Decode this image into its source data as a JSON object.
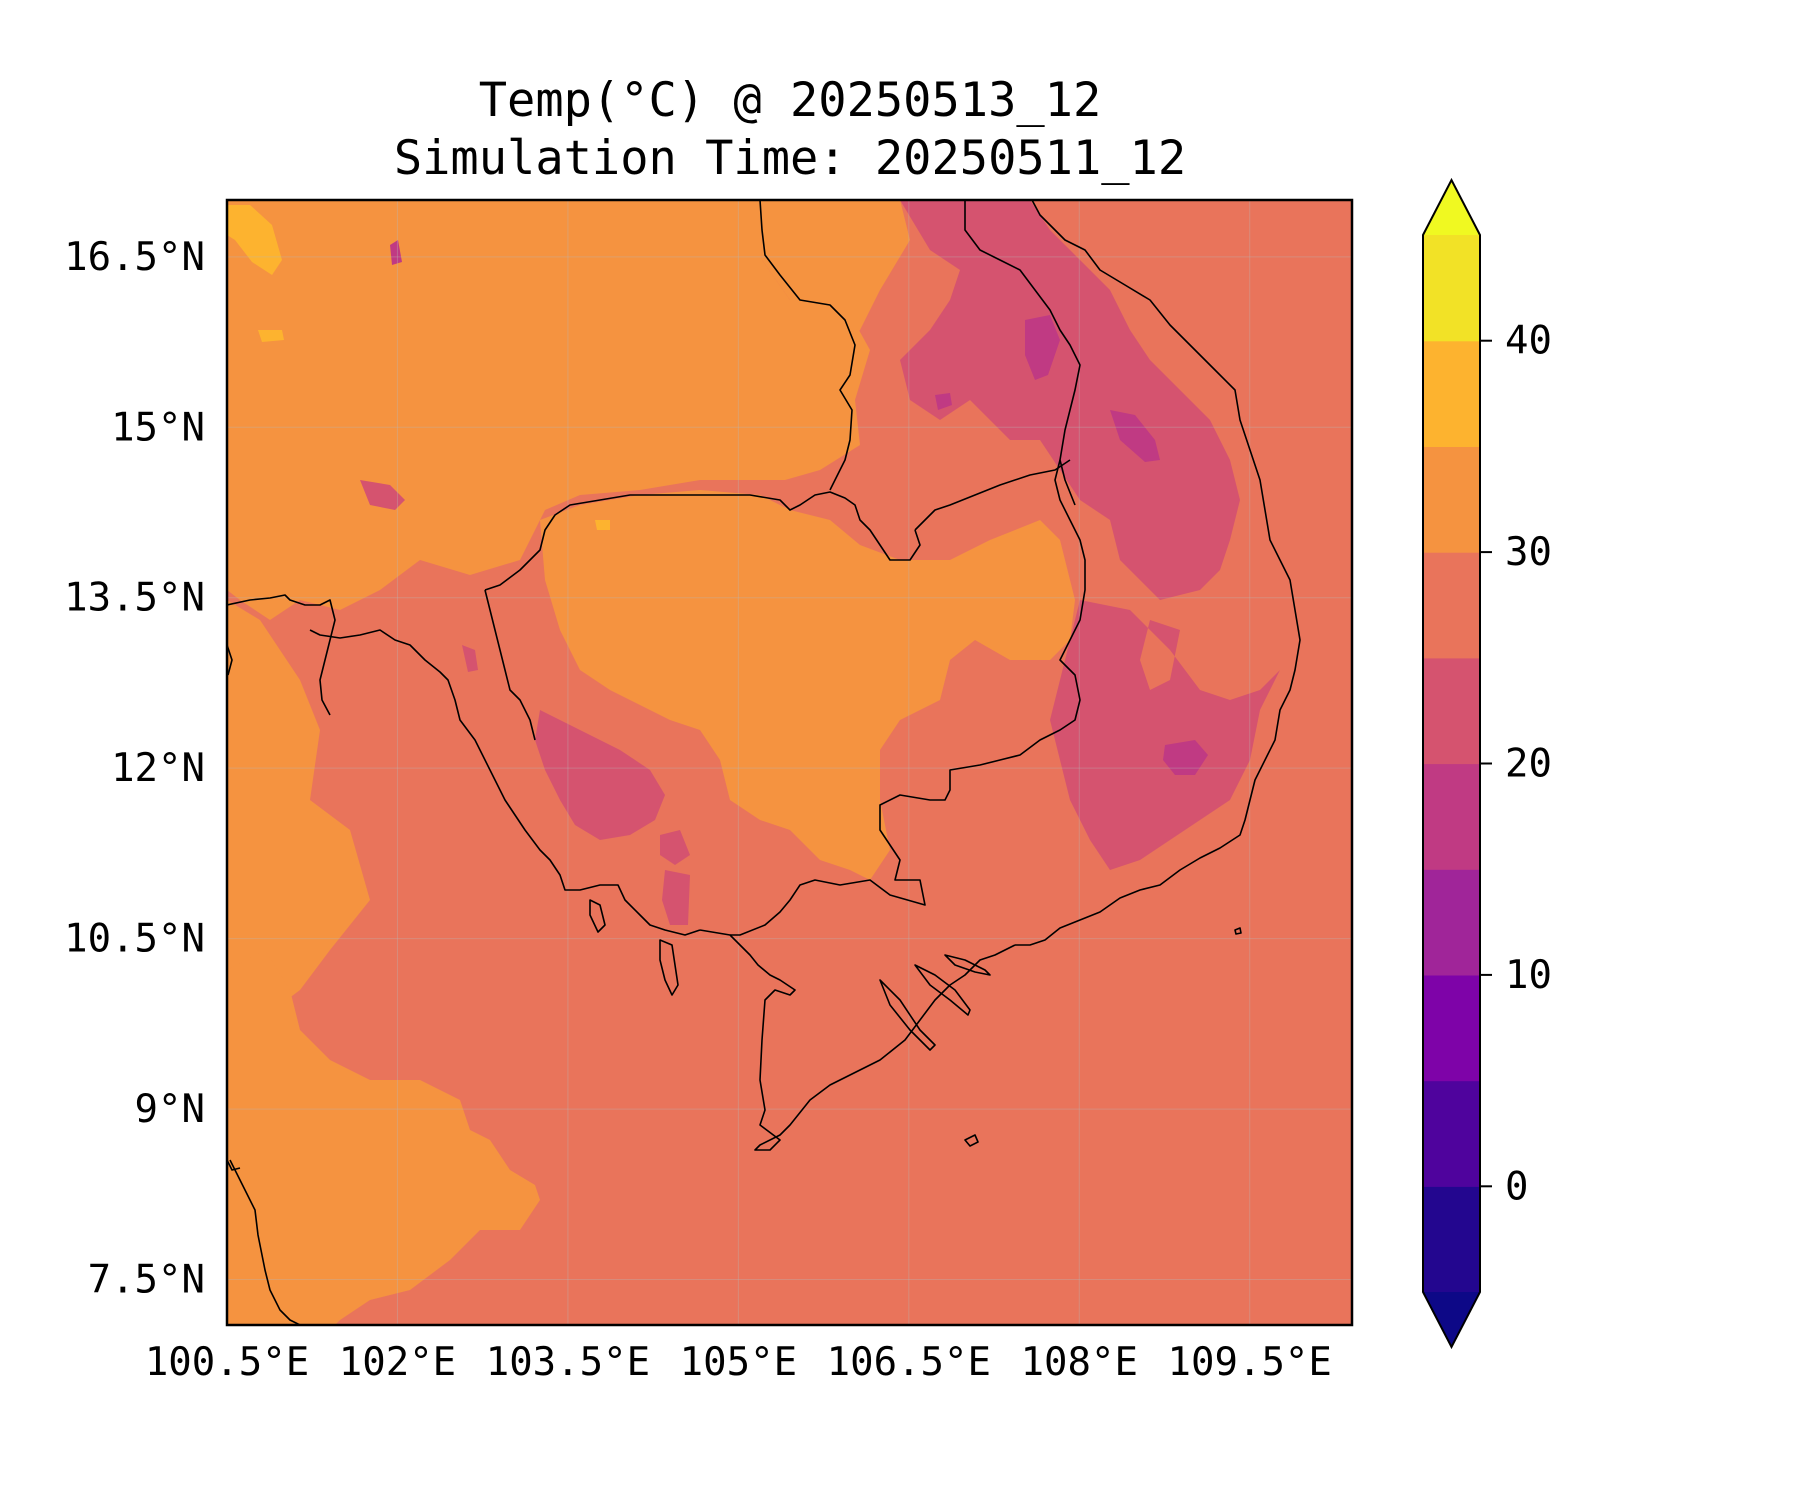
{
  "title": "Temp(°C) @ 20250513_12",
  "subtitle": "Simulation Time: 20250511_12",
  "map": {
    "extent": {
      "lon": [
        100.5,
        110.4
      ],
      "lat": [
        7.1,
        17.0
      ]
    },
    "xticks": [
      {
        "lon": 100.5,
        "label": "100.5°E"
      },
      {
        "lon": 102.0,
        "label": "102°E"
      },
      {
        "lon": 103.5,
        "label": "103.5°E"
      },
      {
        "lon": 105.0,
        "label": "105°E"
      },
      {
        "lon": 106.5,
        "label": "106.5°E"
      },
      {
        "lon": 108.0,
        "label": "108°E"
      },
      {
        "lon": 109.5,
        "label": "109.5°E"
      }
    ],
    "yticks": [
      {
        "lat": 16.5,
        "label": "16.5°N"
      },
      {
        "lat": 15.0,
        "label": "15°N"
      },
      {
        "lat": 13.5,
        "label": "13.5°N"
      },
      {
        "lat": 12.0,
        "label": "12°N"
      },
      {
        "lat": 10.5,
        "label": "10.5°N"
      },
      {
        "lat": 9.0,
        "label": "9°N"
      },
      {
        "lat": 7.5,
        "label": "7.5°N"
      }
    ],
    "gridlines": true
  },
  "colorbar": {
    "levels": [
      -5,
      0,
      5,
      10,
      15,
      20,
      25,
      30,
      35,
      40,
      45
    ],
    "colors": [
      "#23068f",
      "#4f039d",
      "#7e03a8",
      "#a02599",
      "#c03a83",
      "#d5536f",
      "#e9745b",
      "#f59340",
      "#fdb32f",
      "#f2e226"
    ],
    "under_color": "#0d0887",
    "over_color": "#f0f921",
    "ticks": [
      {
        "value": 0,
        "label": "0"
      },
      {
        "value": 10,
        "label": "10"
      },
      {
        "value": 20,
        "label": "20"
      },
      {
        "value": 30,
        "label": "30"
      },
      {
        "value": 40,
        "label": "40"
      }
    ],
    "extend": "both"
  },
  "field": {
    "background_band": "25-30",
    "regions": [
      {
        "name": "western-warm",
        "band": "30-35"
      },
      {
        "name": "cambodia-warm",
        "band": "30-35"
      },
      {
        "name": "laos-north-warm",
        "band": "30-35"
      },
      {
        "name": "annamite-cool",
        "band": "20-25"
      },
      {
        "name": "central-highlands-cool",
        "band": "20-25"
      },
      {
        "name": "cardamom-cool",
        "band": "20-25"
      },
      {
        "name": "peak-cold-spots",
        "band": "15-20"
      },
      {
        "name": "hot-spots",
        "band": "35-40"
      }
    ]
  }
}
